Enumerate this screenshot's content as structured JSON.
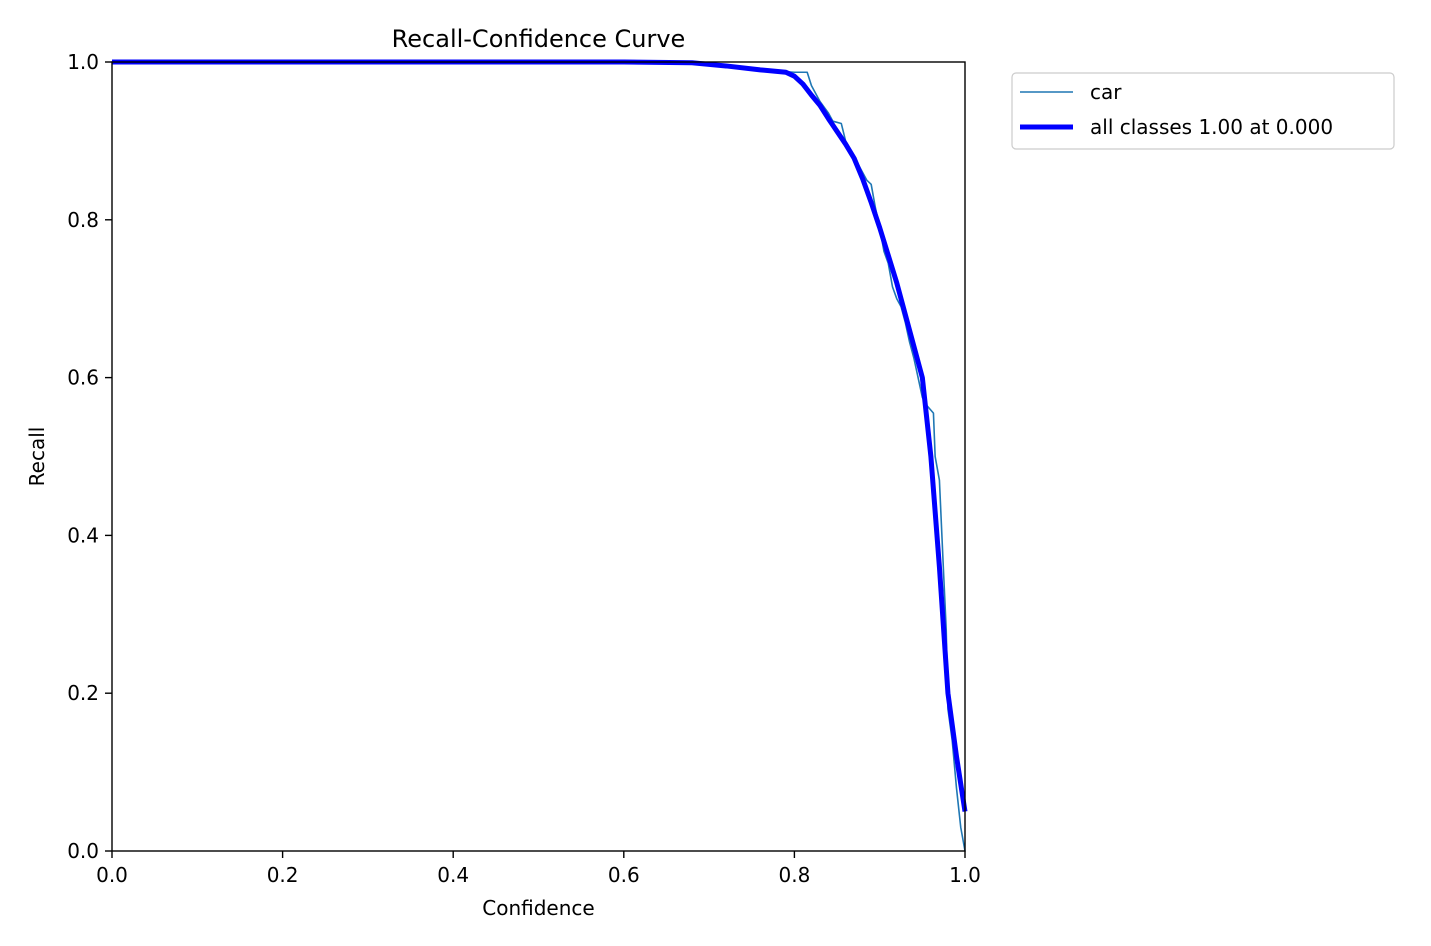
{
  "chart_data": {
    "type": "line",
    "title": "Recall-Confidence Curve",
    "xlabel": "Confidence",
    "ylabel": "Recall",
    "xlim": [
      0,
      1
    ],
    "ylim": [
      0,
      1
    ],
    "xticks": [
      "0.0",
      "0.2",
      "0.4",
      "0.6",
      "0.8",
      "1.0"
    ],
    "yticks": [
      "0.0",
      "0.2",
      "0.4",
      "0.6",
      "0.8",
      "1.0"
    ],
    "grid": false,
    "legend_position": "outside-top-right",
    "series": [
      {
        "name": "car",
        "color": "#1f77b4",
        "line_width": "thin",
        "x": [
          0.0,
          0.6,
          0.68,
          0.72,
          0.76,
          0.8,
          0.815,
          0.82,
          0.83,
          0.84,
          0.845,
          0.855,
          0.86,
          0.865,
          0.87,
          0.875,
          0.88,
          0.885,
          0.89,
          0.895,
          0.9,
          0.905,
          0.91,
          0.915,
          0.92,
          0.925,
          0.93,
          0.935,
          0.94,
          0.945,
          0.95,
          0.955,
          0.963,
          0.965,
          0.97,
          0.975,
          0.978,
          0.98,
          0.985,
          0.99,
          0.995,
          1.0
        ],
        "y": [
          1.0,
          1.0,
          1.0,
          0.995,
          0.99,
          0.987,
          0.987,
          0.97,
          0.95,
          0.935,
          0.925,
          0.922,
          0.9,
          0.89,
          0.88,
          0.87,
          0.86,
          0.85,
          0.845,
          0.815,
          0.79,
          0.76,
          0.745,
          0.715,
          0.7,
          0.69,
          0.67,
          0.645,
          0.625,
          0.6,
          0.575,
          0.565,
          0.555,
          0.5,
          0.47,
          0.35,
          0.28,
          0.18,
          0.14,
          0.08,
          0.03,
          0.0
        ]
      },
      {
        "name": "all classes 1.00 at 0.000",
        "color": "#0000ff",
        "line_width": "thick",
        "x": [
          0.0,
          0.6,
          0.68,
          0.72,
          0.76,
          0.79,
          0.8,
          0.81,
          0.82,
          0.83,
          0.84,
          0.85,
          0.86,
          0.87,
          0.88,
          0.89,
          0.9,
          0.91,
          0.92,
          0.93,
          0.94,
          0.95,
          0.96,
          0.97,
          0.98,
          0.99,
          1.0
        ],
        "y": [
          1.0,
          1.0,
          0.999,
          0.995,
          0.99,
          0.987,
          0.982,
          0.972,
          0.958,
          0.945,
          0.928,
          0.912,
          0.896,
          0.878,
          0.852,
          0.822,
          0.79,
          0.755,
          0.72,
          0.68,
          0.64,
          0.6,
          0.5,
          0.36,
          0.2,
          0.12,
          0.05
        ]
      }
    ]
  }
}
